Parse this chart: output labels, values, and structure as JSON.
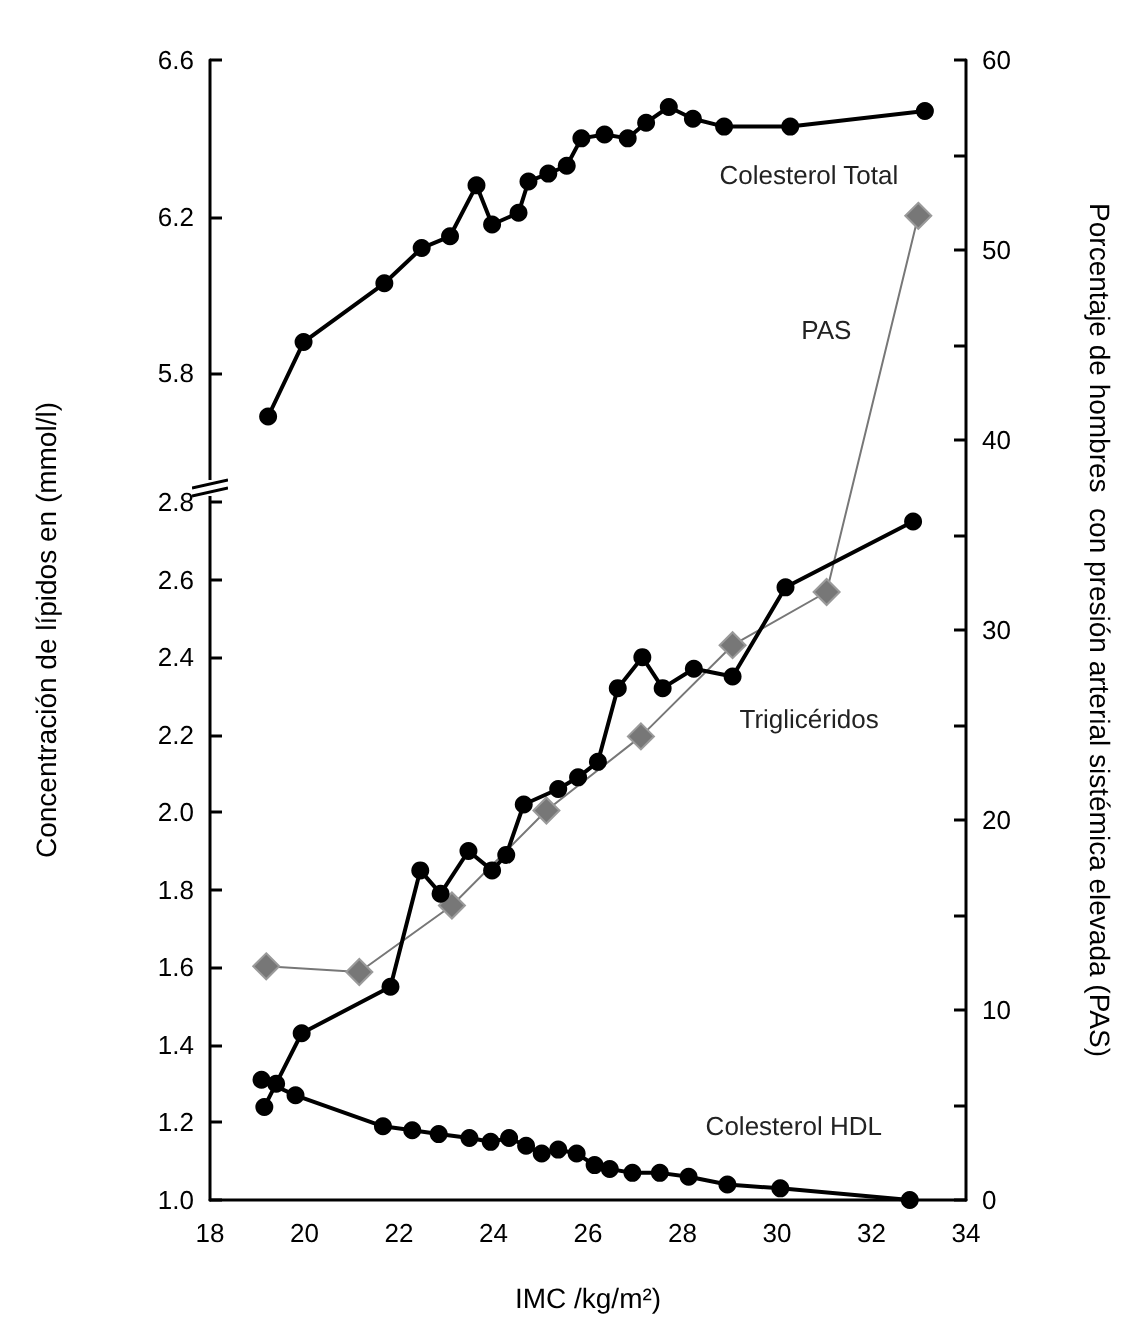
{
  "chart_data": {
    "type": "line",
    "xlabel": "IMC /kg/m²)",
    "ylabel": "Concentración de lípidos en (mmol/l)",
    "y2label": "Porcentaje de hombres  con presión arterial sistémica elevada (PAS)",
    "xlim": [
      18,
      34
    ],
    "xticks": [
      18,
      20,
      22,
      24,
      26,
      28,
      30,
      32,
      34
    ],
    "ylim": [
      1.0,
      3.94
    ],
    "yticks": [
      {
        "value": 1.0,
        "label": "1.0"
      },
      1.2,
      1.4,
      1.6,
      1.8,
      {
        "value": 2.0,
        "label": "2.0"
      },
      2.2,
      2.4,
      2.6,
      2.8
    ],
    "y3lim": [
      3.69,
      6.6
    ],
    "y3ticks": [
      5.8,
      6.2,
      6.6
    ],
    "y2lim": [
      0,
      60
    ],
    "y2ticks": [
      0,
      {
        "value": 5,
        "label": null
      },
      10,
      {
        "value": 15,
        "label": null
      },
      20,
      {
        "value": 25,
        "label": null
      },
      30,
      {
        "value": 35,
        "label": null
      },
      40,
      {
        "value": 45,
        "label": null
      },
      50,
      {
        "value": 55,
        "label": null
      },
      60
    ],
    "grid": false,
    "legend": false,
    "line_style": "solid",
    "series": [
      {
        "name": "Colesterol Total",
        "color": "#000000",
        "axis": "y3",
        "marker": "circle",
        "x": [
          19.23,
          19.98,
          21.69,
          22.48,
          23.08,
          23.64,
          23.97,
          24.53,
          24.74,
          25.16,
          25.55,
          25.86,
          26.35,
          26.84,
          27.23,
          27.71,
          28.22,
          28.88,
          30.28,
          33.13
        ],
        "values": [
          5.69,
          5.88,
          6.03,
          6.12,
          6.15,
          6.28,
          6.18,
          6.21,
          6.29,
          6.31,
          6.33,
          6.4,
          6.41,
          6.4,
          6.44,
          6.48,
          6.45,
          6.43,
          6.43,
          6.47
        ]
      },
      {
        "name": "PAS",
        "color": "#777777",
        "axis": "y2",
        "marker": "diamond",
        "x": [
          19.19,
          21.16,
          23.12,
          25.12,
          27.12,
          29.06,
          31.05,
          32.99
        ],
        "values": [
          12.3,
          12.0,
          15.5,
          20.5,
          24.4,
          29.2,
          32.0,
          51.8
        ]
      },
      {
        "name": "Triglicéridos",
        "color": "#000000",
        "axis": "y",
        "marker": "circle",
        "x": [
          19.15,
          19.4,
          19.94,
          21.82,
          22.45,
          22.88,
          23.47,
          23.97,
          24.27,
          24.64,
          25.37,
          25.79,
          26.21,
          26.63,
          27.15,
          27.58,
          28.24,
          29.06,
          30.18,
          32.88
        ],
        "values": [
          1.24,
          1.3,
          1.43,
          1.55,
          1.85,
          1.79,
          1.9,
          1.85,
          1.89,
          2.02,
          2.06,
          2.09,
          2.13,
          2.32,
          2.4,
          2.32,
          2.37,
          2.35,
          2.58,
          2.75
        ]
      },
      {
        "name": "Colesterol HDL",
        "color": "#000000",
        "axis": "y",
        "marker": "circle",
        "x": [
          19.09,
          19.81,
          21.66,
          22.28,
          22.84,
          23.49,
          23.94,
          24.33,
          24.69,
          25.02,
          25.37,
          25.76,
          26.14,
          26.46,
          26.94,
          27.52,
          28.13,
          28.95,
          30.07,
          32.81
        ],
        "values": [
          1.31,
          1.27,
          1.19,
          1.18,
          1.17,
          1.16,
          1.15,
          1.16,
          1.14,
          1.12,
          1.13,
          1.12,
          1.09,
          1.08,
          1.07,
          1.07,
          1.06,
          1.04,
          1.03,
          1.0
        ]
      }
    ]
  }
}
